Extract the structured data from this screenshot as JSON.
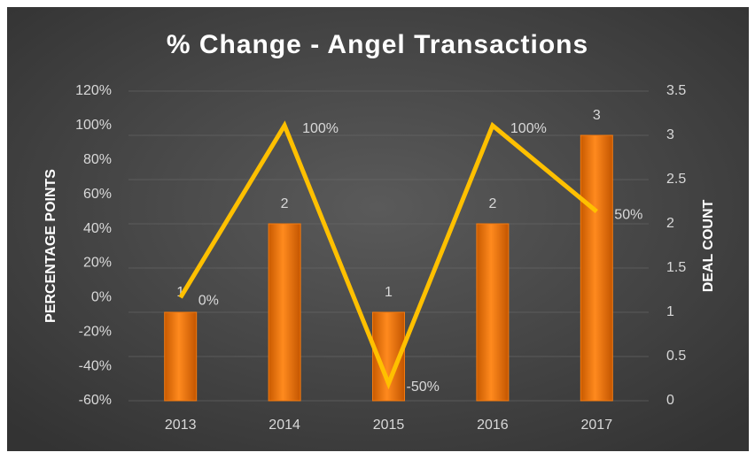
{
  "chart_data": {
    "type": "combo",
    "title": "% Change - Angel Transactions",
    "categories": [
      "2013",
      "2014",
      "2015",
      "2016",
      "2017"
    ],
    "y_label": "PERCENTAGE POINTS",
    "y2_label": "DEAL COUNT",
    "ylim": [
      -60,
      120
    ],
    "yticks": [
      {
        "value": -60,
        "label": "-60%"
      },
      {
        "value": -40,
        "label": "-40%"
      },
      {
        "value": -20,
        "label": "-20%"
      },
      {
        "value": 0,
        "label": "0%"
      },
      {
        "value": 20,
        "label": "20%"
      },
      {
        "value": 40,
        "label": "40%"
      },
      {
        "value": 60,
        "label": "60%"
      },
      {
        "value": 80,
        "label": "80%"
      },
      {
        "value": 100,
        "label": "100%"
      },
      {
        "value": 120,
        "label": "120%"
      }
    ],
    "y2lim": [
      0,
      3.5
    ],
    "y2ticks": [
      0,
      0.5,
      1,
      1.5,
      2,
      2.5,
      3,
      3.5
    ],
    "grid": true,
    "series": [
      {
        "name": "Deal Count",
        "type": "bar",
        "axis": "y2",
        "color": "#f47b10",
        "values": [
          1,
          2,
          1,
          2,
          3
        ]
      },
      {
        "name": "% Change",
        "type": "line",
        "color": "#ffc000",
        "values": [
          0,
          100,
          -50,
          100,
          50
        ],
        "value_labels": [
          "0%",
          "100%",
          "-50%",
          "100%",
          "50%"
        ]
      }
    ]
  }
}
